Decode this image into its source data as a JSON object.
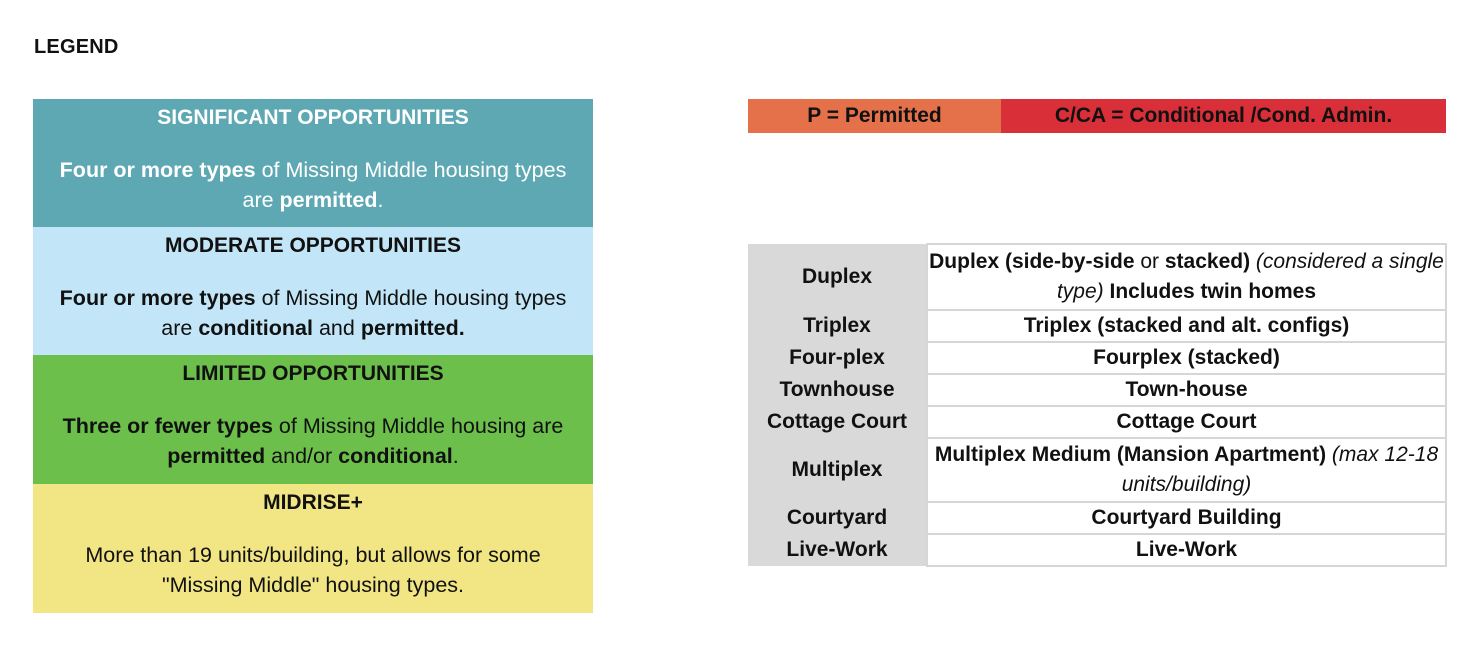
{
  "legend_title": "LEGEND",
  "legend": [
    {
      "id": "sig",
      "heading": "SIGNIFICANT OPPORTUNITIES",
      "color": "#5ea8b3",
      "desc_bold1": "Four or more types",
      "desc_text1": " of Missing Middle housing types are ",
      "desc_bold2": "permitted",
      "desc_text2": "."
    },
    {
      "id": "mod",
      "heading": "MODERATE OPPORTUNITIES",
      "color": "#c2e6f7",
      "desc_bold1": "Four or more types",
      "desc_text1": " of Missing Middle housing types are ",
      "desc_bold2": "conditional",
      "desc_text2": " and ",
      "desc_bold3": "permitted."
    },
    {
      "id": "lim",
      "heading": "LIMITED OPPORTUNITIES",
      "color": "#6cbf4b",
      "desc_bold1": "Three or fewer types",
      "desc_text1": " of Missing Middle housing are ",
      "desc_bold2": "permitted",
      "desc_text2": " and/or ",
      "desc_bold3": "conditional",
      "desc_text3": "."
    },
    {
      "id": "mid",
      "heading": "MIDRISE+",
      "color": "#f2e684",
      "desc_text1": "More than 19 units/building, but allows for some \"Missing Middle\" housing types."
    }
  ],
  "key": {
    "permitted": "P = Permitted",
    "conditional": "C/CA =  Conditional /Cond. Admin.",
    "permitted_color": "#e4714a",
    "conditional_color": "#d92f38"
  },
  "types": [
    {
      "type": "Duplex",
      "desc_bold": "Duplex (side-by-side",
      "desc_plain": " or ",
      "desc_bold_b": "stacked)",
      "desc_italic": " (considered a single type)",
      "desc_bold_c": " Includes twin homes"
    },
    {
      "type": "Triplex",
      "desc_bold": "Triplex (stacked and alt. configs)"
    },
    {
      "type": "Four-plex",
      "desc_bold": "Fourplex (stacked)"
    },
    {
      "type": "Townhouse",
      "desc_bold": "Town-house"
    },
    {
      "type": "Cottage Court",
      "desc_bold": "Cottage Court"
    },
    {
      "type": "Multiplex",
      "desc_bold": "Multiplex Medium (Mansion Apartment)",
      "desc_italic": " (max 12-18 units/building)"
    },
    {
      "type": "Courtyard",
      "desc_bold": "Courtyard Building"
    },
    {
      "type": "Live-Work",
      "desc_bold": "Live-Work"
    }
  ]
}
